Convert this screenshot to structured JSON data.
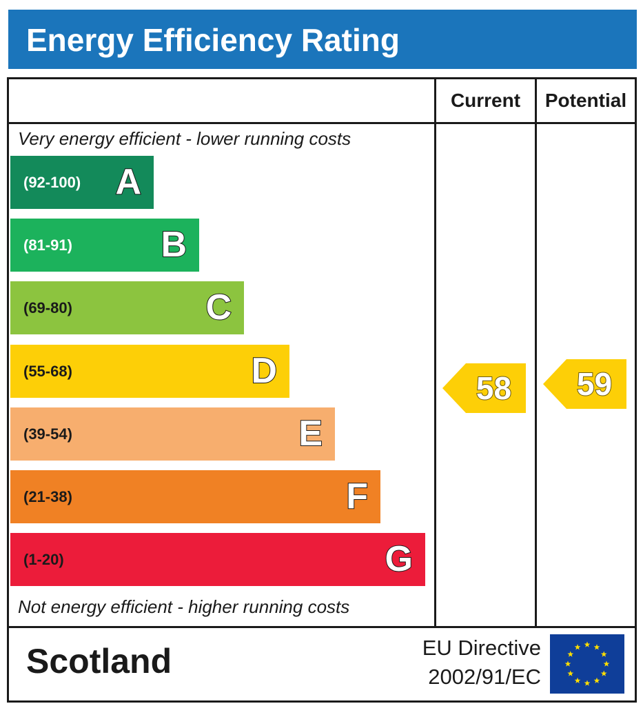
{
  "title": "Energy Efficiency Rating",
  "columns": {
    "current": "Current",
    "potential": "Potential"
  },
  "top_note": "Very energy efficient - lower running costs",
  "bottom_note": "Not energy efficient - higher running costs",
  "region": "Scotland",
  "directive": {
    "line1": "EU Directive",
    "line2": "2002/91/EC"
  },
  "colors": {
    "title_bar": "#1b75bb",
    "flag": "#0f3e99",
    "stars": "#ffde00"
  },
  "chart_data": {
    "type": "bar",
    "title": "Energy Efficiency Rating",
    "categories": [
      "A",
      "B",
      "C",
      "D",
      "E",
      "F",
      "G"
    ],
    "bands": [
      {
        "letter": "A",
        "range": "(92-100)",
        "min": 92,
        "max": 100,
        "color": "#138a5a",
        "text_color": "#ffffff"
      },
      {
        "letter": "B",
        "range": "(81-91)",
        "min": 81,
        "max": 91,
        "color": "#1cb25c",
        "text_color": "#ffffff"
      },
      {
        "letter": "C",
        "range": "(69-80)",
        "min": 69,
        "max": 80,
        "color": "#8cc43f",
        "text_color": "#1a1a1a"
      },
      {
        "letter": "D",
        "range": "(55-68)",
        "min": 55,
        "max": 68,
        "color": "#fdcf07",
        "text_color": "#1a1a1a"
      },
      {
        "letter": "E",
        "range": "(39-54)",
        "min": 39,
        "max": 54,
        "color": "#f7ae6e",
        "text_color": "#1a1a1a"
      },
      {
        "letter": "F",
        "range": "(21-38)",
        "min": 21,
        "max": 38,
        "color": "#f08124",
        "text_color": "#1a1a1a"
      },
      {
        "letter": "G",
        "range": "(1-20)",
        "min": 1,
        "max": 20,
        "color": "#ec1c3a",
        "text_color": "#1a1a1a"
      }
    ],
    "series": [
      {
        "name": "Current",
        "value": 58,
        "band": "D",
        "color": "#fdcf07"
      },
      {
        "name": "Potential",
        "value": 59,
        "band": "D",
        "color": "#fdcf07"
      }
    ]
  }
}
